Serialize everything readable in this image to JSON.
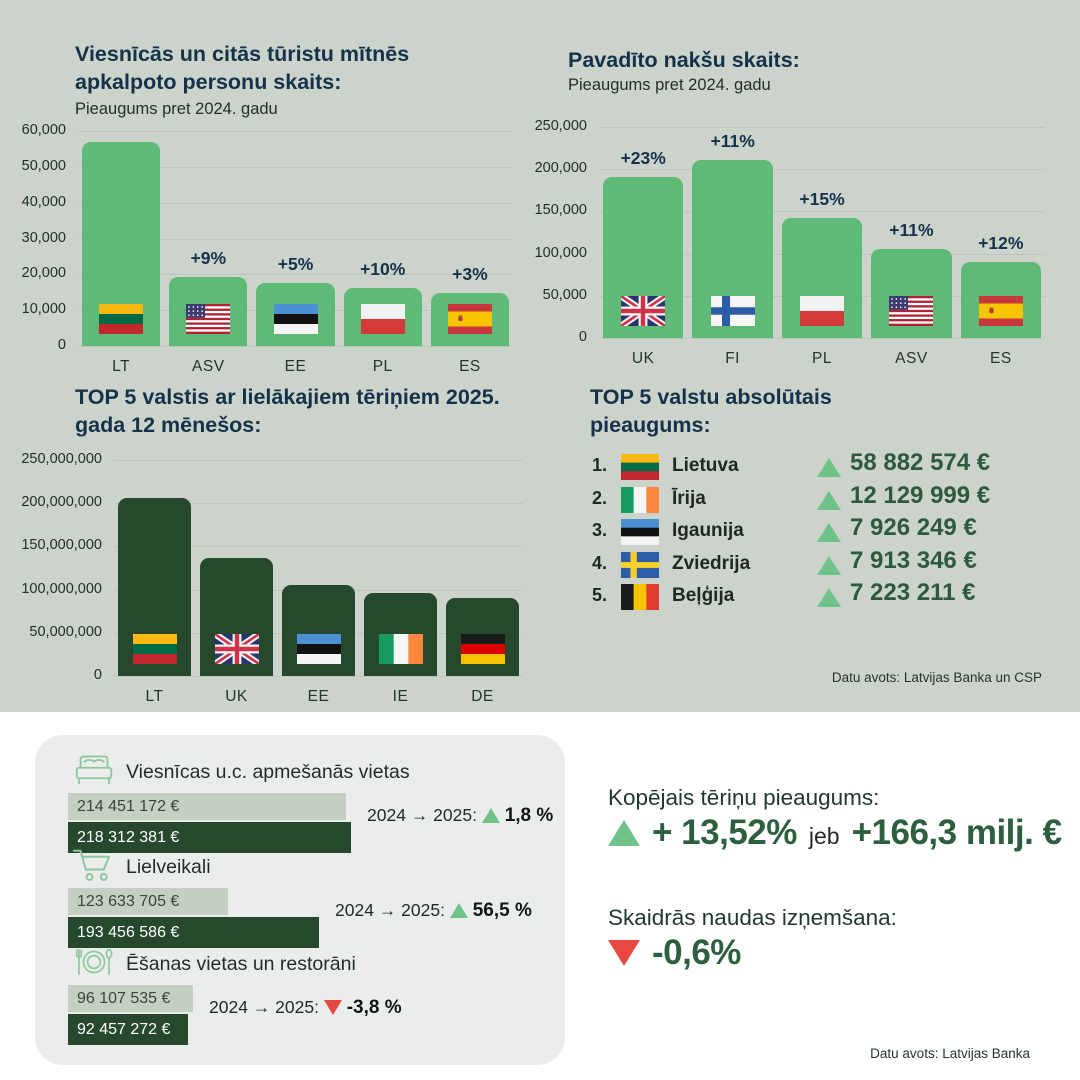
{
  "colors": {
    "top_background": "#cbd3ca",
    "card_background": "#ebedec",
    "bar_green": "#5fba78",
    "bar_dark_green": "#26492e",
    "bar_light_gray": "#c6cfc4",
    "title_navy": "#14324b",
    "value_green": "#2d5a3d",
    "triangle_green": "#6fc389",
    "triangle_red": "#e8493f"
  },
  "chart_data": [
    {
      "id": "persons-served",
      "type": "bar",
      "title": "Viesnīcās un citās tūristu mītnēs apkalpoto personu skaits:",
      "subtitle": "Pieaugums pret 2024. gadu",
      "categories": [
        "LT",
        "ASV",
        "EE",
        "PL",
        "ES"
      ],
      "values": [
        56900,
        19300,
        17500,
        16100,
        14700
      ],
      "pct_labels": [
        null,
        "+9%",
        "+5%",
        "+10%",
        "+3%"
      ],
      "flags": [
        "lt",
        "us",
        "ee",
        "pl",
        "es"
      ],
      "ylim": [
        0,
        60000
      ],
      "ytick_step": 10000,
      "bar_color": "#5fba78",
      "grid": true,
      "legend": "none"
    },
    {
      "id": "nights-spent",
      "type": "bar",
      "title": "Pavadīto nakšu skaits:",
      "subtitle": "Pieaugums pret 2024. gadu",
      "categories": [
        "UK",
        "FI",
        "PL",
        "ASV",
        "ES"
      ],
      "values": [
        191000,
        211000,
        142500,
        105000,
        90000
      ],
      "pct_labels": [
        "+23%",
        "+11%",
        "+15%",
        "+11%",
        "+12%"
      ],
      "flags": [
        "gb",
        "fi",
        "pl",
        "us",
        "es"
      ],
      "ylim": [
        0,
        250000
      ],
      "ytick_step": 50000,
      "bar_color": "#5fba78",
      "grid": true,
      "legend": "none"
    },
    {
      "id": "top5-spending",
      "type": "bar",
      "title": "TOP 5 valstis ar lielākajiem tēriņiem 2025. gada 12 mēnešos:",
      "categories": [
        "LT",
        "UK",
        "EE",
        "IE",
        "DE"
      ],
      "values": [
        206000000,
        136500000,
        105000000,
        96500000,
        90000000
      ],
      "pct_labels": null,
      "flags": [
        "lt",
        "gb",
        "ee",
        "ie",
        "de"
      ],
      "ylim": [
        0,
        250000000
      ],
      "ytick_step": 50000000,
      "bar_color": "#26492e",
      "grid": true,
      "legend": "none"
    },
    {
      "id": "spending-comparison",
      "type": "bar",
      "orientation": "horizontal",
      "categories": [
        "Viesnīcas u.c. apmešanās vietas",
        "Lielveikali",
        "Ēšanas vietas un restorāni"
      ],
      "icons": [
        "bed-icon",
        "cart-icon",
        "plate-icon"
      ],
      "series": [
        {
          "name": "2024",
          "values": [
            214451172,
            123633705,
            96107535
          ],
          "labels": [
            "214 451 172 €",
            "123 633 705  €",
            "96 107 535  €"
          ]
        },
        {
          "name": "2025",
          "values": [
            218312381,
            193456586,
            92457272
          ],
          "labels": [
            "218 312 381 €",
            "193 456 586 €",
            "92 457 272 €"
          ]
        }
      ],
      "changes": [
        {
          "prefix": "2024 → 2025:",
          "direction": "up",
          "value": "1,8 %"
        },
        {
          "prefix": "2024 → 2025:",
          "direction": "up",
          "value": "56,5 %"
        },
        {
          "prefix": "2024 → 2025:",
          "direction": "down",
          "value": "-3,8 %"
        }
      ]
    }
  ],
  "top5": {
    "title": "TOP 5 valstu absolūtais pieaugums:",
    "items": [
      {
        "rank": "1.",
        "flag": "lt",
        "name": "Lietuva",
        "value": "58 882 574 €"
      },
      {
        "rank": "2.",
        "flag": "ie",
        "name": "Īrija",
        "value": "12 129 999 €"
      },
      {
        "rank": "3.",
        "flag": "ee",
        "name": "Igaunija",
        "value": "7 926 249 €"
      },
      {
        "rank": "4.",
        "flag": "se",
        "name": "Zviedrija",
        "value": "7 913 346 €"
      },
      {
        "rank": "5.",
        "flag": "be",
        "name": "Beļģija",
        "value": "7 223 211 €"
      }
    ]
  },
  "stats": {
    "spend_title": "Kopējais tēriņu pieaugums:",
    "spend_main": "+ 13,52%",
    "spend_joiner": "jeb",
    "spend_secondary": "+166,3 milj. €",
    "cash_title": "Skaidrās naudas izņemšana:",
    "cash_value": "-0,6%"
  },
  "sources": {
    "top": "Datu avots: Latvijas Banka un CSP",
    "bottom": "Datu avots: Latvijas Banka"
  }
}
